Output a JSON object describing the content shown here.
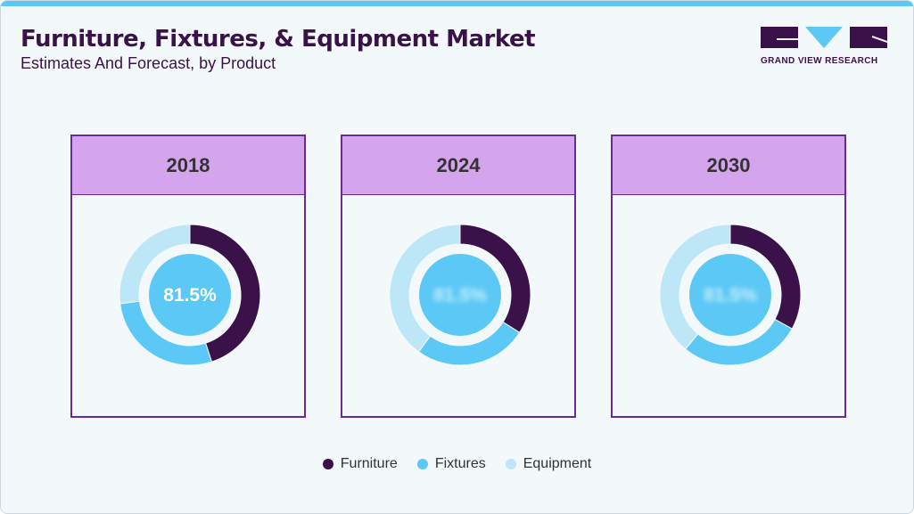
{
  "header": {
    "title": "Furniture, Fixtures, & Equipment Market",
    "subtitle": "Estimates And Forecast, by Product"
  },
  "logo": {
    "text": "GRAND VIEW RESEARCH"
  },
  "chart_data": {
    "type": "donut",
    "series_names": [
      "Furniture",
      "Fixtures",
      "Equipment"
    ],
    "colors": {
      "Furniture": "#3a1249",
      "Fixtures": "#5bc8f5",
      "Equipment": "#bde6f7"
    },
    "legend_position": "bottom",
    "charts": [
      {
        "year": "2018",
        "center_label": "81.5%",
        "center_blurred": false,
        "values": [
          45,
          28,
          27
        ]
      },
      {
        "year": "2024",
        "center_label": "81.5%",
        "center_blurred": true,
        "values": [
          34,
          26,
          40
        ]
      },
      {
        "year": "2030",
        "center_label": "81.5%",
        "center_blurred": true,
        "values": [
          33,
          28,
          39
        ]
      }
    ]
  }
}
